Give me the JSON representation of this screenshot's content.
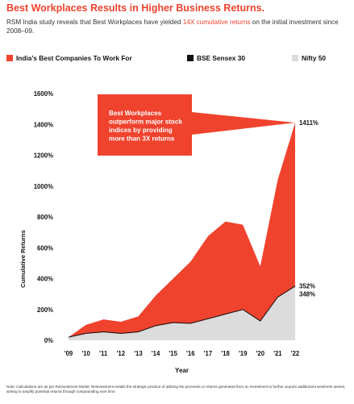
{
  "header": {
    "title": "Best Workplaces Results in Higher Business Returns.",
    "subtitle_pre": "RSM India study reveals that Best Workplaces have yielded ",
    "subtitle_highlight": "14X cumulative returns",
    "subtitle_post": " on the initial investment since 2008–09."
  },
  "legend": [
    {
      "label": "India’s Best Companies To Work For",
      "color": "#f0432e"
    },
    {
      "label": "BSE Sensex 30",
      "color": "#111111"
    },
    {
      "label": "Nifty 50",
      "color": "#dcdcdc"
    }
  ],
  "callout": {
    "lines": [
      "Best Workplaces",
      "outperform major stock",
      "indices by providing",
      "more than 3X returns"
    ],
    "color": "#f0432e"
  },
  "chart_data": {
    "type": "area",
    "x": [
      "'09",
      "'10",
      "'11",
      "'12",
      "'13",
      "'14",
      "'15",
      "'16",
      "'17",
      "'18",
      "'19",
      "'20",
      "'21",
      "'22"
    ],
    "xlabel": "Year",
    "ylabel": "Cumulative Returns",
    "ylim": [
      0,
      1600
    ],
    "yticks": [
      0,
      200,
      400,
      600,
      800,
      1000,
      1200,
      1400,
      1600
    ],
    "ytick_labels": [
      "0%",
      "200%",
      "400%",
      "600%",
      "800%",
      "1000%",
      "1200%",
      "1400%",
      "1600%"
    ],
    "series": [
      {
        "name": "India’s Best Companies To Work For",
        "color": "#f0432e",
        "values": [
          20,
          100,
          135,
          120,
          155,
          290,
          400,
          510,
          675,
          770,
          750,
          480,
          1040,
          1411
        ]
      },
      {
        "name": "BSE Sensex 30",
        "color": "#111111",
        "values": [
          20,
          45,
          55,
          45,
          55,
          95,
          115,
          110,
          140,
          170,
          200,
          125,
          280,
          352
        ]
      },
      {
        "name": "Nifty 50",
        "color": "#dcdcdc",
        "values": [
          20,
          42,
          52,
          42,
          52,
          92,
          112,
          107,
          137,
          167,
          197,
          122,
          277,
          348
        ]
      }
    ],
    "end_labels": [
      "1411%",
      "352%",
      "348%"
    ]
  },
  "note": "Note: Calculations are as per Reinvestment Model; Reinvestment entails the strategic practice of utilizing the proceeds or returns generated from an investment to further acquire additional investment assets, aiming to amplify potential returns through compounding over time."
}
